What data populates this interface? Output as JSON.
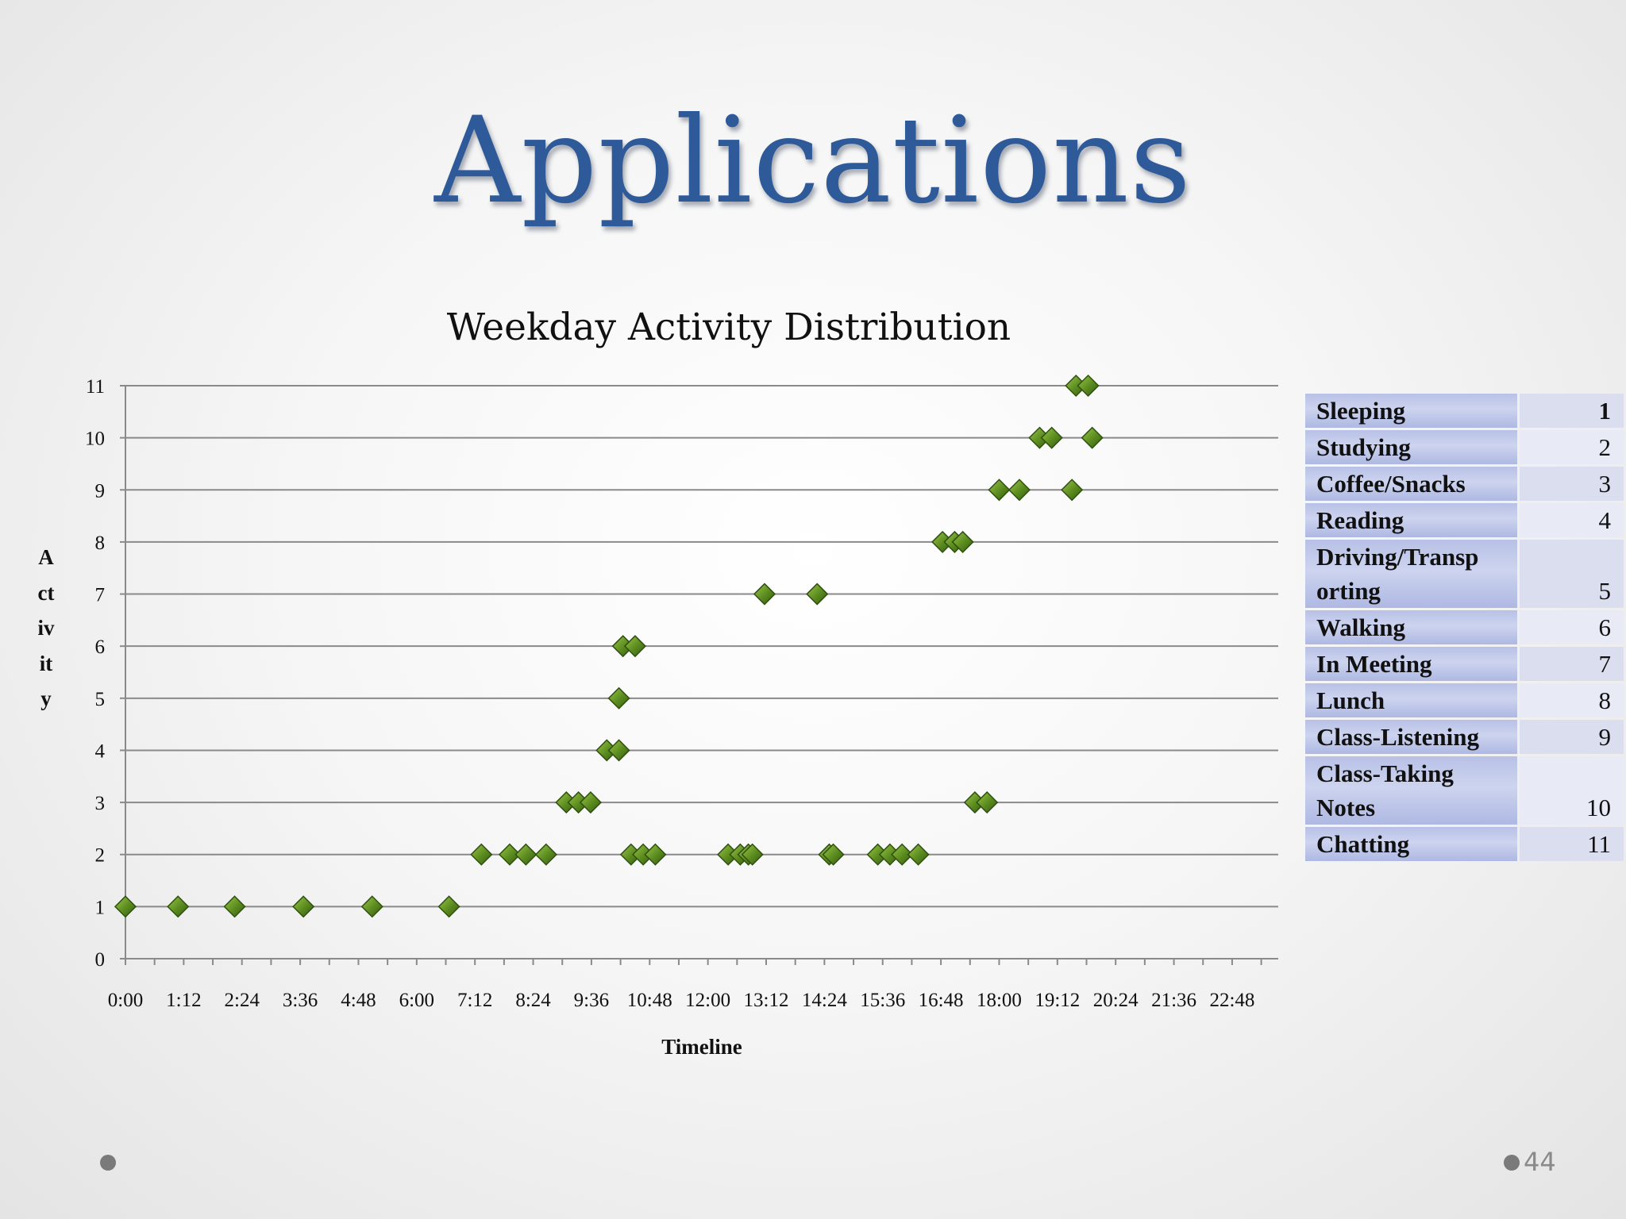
{
  "slide": {
    "title": "Applications",
    "page_number": "44"
  },
  "chart_data": {
    "type": "scatter",
    "title": "Weekday Activity Distribution",
    "xlabel": "Timeline",
    "ylabel": "Activity",
    "x_unit": "time of day (h:mm)",
    "xlim": [
      "0:00",
      "23:45"
    ],
    "ylim": [
      0,
      11
    ],
    "x_ticks": [
      "0:00",
      "1:12",
      "2:24",
      "3:36",
      "4:48",
      "6:00",
      "7:12",
      "8:24",
      "9:36",
      "10:48",
      "12:00",
      "13:12",
      "14:24",
      "15:36",
      "16:48",
      "18:00",
      "19:12",
      "20:24",
      "21:36",
      "22:48"
    ],
    "y_ticks": [
      0,
      1,
      2,
      3,
      4,
      5,
      6,
      7,
      8,
      9,
      10,
      11
    ],
    "grid": "horizontal",
    "marker": "diamond",
    "colors": {
      "marker": "#5a8a1e",
      "marker_edge": "#2f5010",
      "grid": "#888888"
    },
    "points": [
      {
        "x": "0:00",
        "y": 1
      },
      {
        "x": "1:05",
        "y": 1
      },
      {
        "x": "2:15",
        "y": 1
      },
      {
        "x": "3:40",
        "y": 1
      },
      {
        "x": "5:05",
        "y": 1
      },
      {
        "x": "6:40",
        "y": 1
      },
      {
        "x": "7:20",
        "y": 2
      },
      {
        "x": "7:55",
        "y": 2
      },
      {
        "x": "8:15",
        "y": 2
      },
      {
        "x": "8:40",
        "y": 2
      },
      {
        "x": "9:05",
        "y": 3
      },
      {
        "x": "9:20",
        "y": 3
      },
      {
        "x": "9:35",
        "y": 3
      },
      {
        "x": "9:55",
        "y": 4
      },
      {
        "x": "10:10",
        "y": 4
      },
      {
        "x": "10:10",
        "y": 5
      },
      {
        "x": "10:15",
        "y": 6
      },
      {
        "x": "10:30",
        "y": 6
      },
      {
        "x": "10:25",
        "y": 2
      },
      {
        "x": "10:40",
        "y": 2
      },
      {
        "x": "10:55",
        "y": 2
      },
      {
        "x": "12:25",
        "y": 2
      },
      {
        "x": "12:40",
        "y": 2
      },
      {
        "x": "12:50",
        "y": 2
      },
      {
        "x": "12:55",
        "y": 2
      },
      {
        "x": "13:10",
        "y": 7
      },
      {
        "x": "14:15",
        "y": 7
      },
      {
        "x": "14:30",
        "y": 2
      },
      {
        "x": "14:35",
        "y": 2
      },
      {
        "x": "15:30",
        "y": 2
      },
      {
        "x": "15:45",
        "y": 2
      },
      {
        "x": "16:00",
        "y": 2
      },
      {
        "x": "16:20",
        "y": 2
      },
      {
        "x": "16:50",
        "y": 8
      },
      {
        "x": "17:05",
        "y": 8
      },
      {
        "x": "17:15",
        "y": 8
      },
      {
        "x": "17:30",
        "y": 3
      },
      {
        "x": "17:45",
        "y": 3
      },
      {
        "x": "18:00",
        "y": 9
      },
      {
        "x": "18:25",
        "y": 9
      },
      {
        "x": "18:50",
        "y": 10
      },
      {
        "x": "19:05",
        "y": 10
      },
      {
        "x": "19:30",
        "y": 9
      },
      {
        "x": "19:35",
        "y": 11
      },
      {
        "x": "19:50",
        "y": 11
      },
      {
        "x": "19:55",
        "y": 10
      }
    ]
  },
  "legend": {
    "rows": [
      {
        "name": "Sleeping",
        "code": "1"
      },
      {
        "name": "Studying",
        "code": "2"
      },
      {
        "name": "Coffee/Snacks",
        "code": "3"
      },
      {
        "name": "Reading",
        "code": "4"
      },
      {
        "name": "Driving/Transp orting",
        "code": "5"
      },
      {
        "name": "Walking",
        "code": "6"
      },
      {
        "name": "In Meeting",
        "code": "7"
      },
      {
        "name": "Lunch",
        "code": "8"
      },
      {
        "name": "Class-Listening",
        "code": "9"
      },
      {
        "name": "Class-Taking Notes",
        "code": "10"
      },
      {
        "name": "Chatting",
        "code": "11"
      }
    ]
  }
}
